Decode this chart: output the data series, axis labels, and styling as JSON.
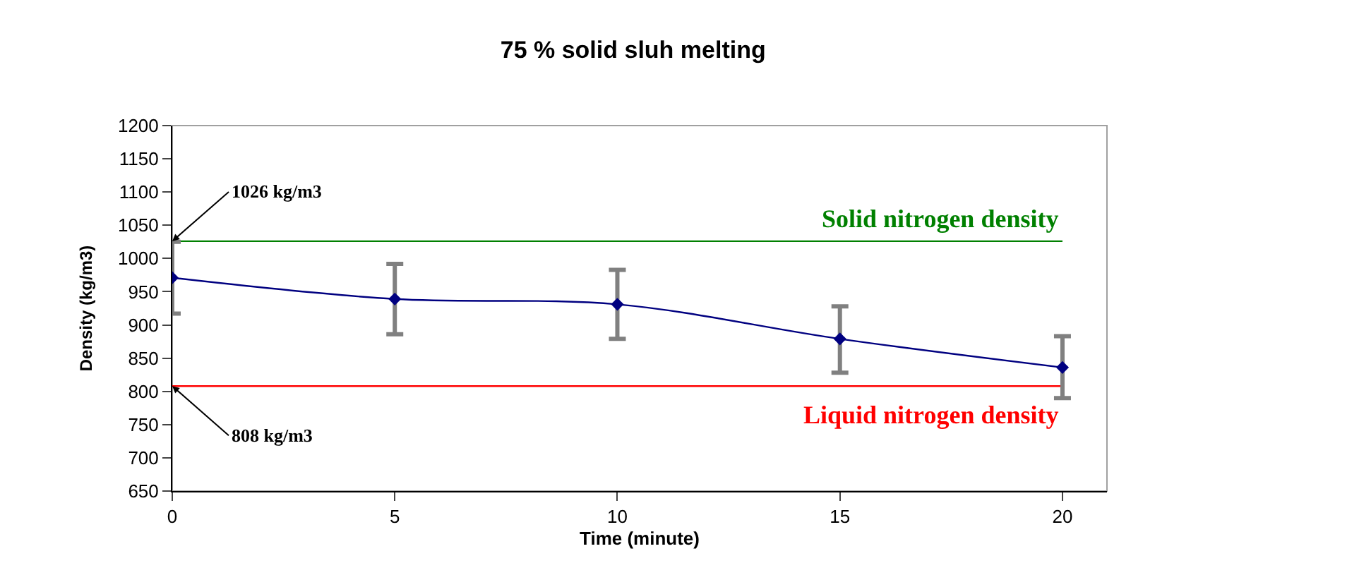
{
  "chart_data": {
    "type": "line",
    "title": "75 % solid sluh melting",
    "xlabel": "Time (minute)",
    "ylabel": "Density (kg/m3)",
    "x": [
      0,
      5,
      10,
      15,
      20
    ],
    "series": [
      {
        "color": "#000080",
        "values": [
          971,
          939,
          931,
          879,
          836
        ],
        "errors": [
          [
            917,
            1025
          ],
          [
            886,
            992
          ],
          [
            879,
            983
          ],
          [
            828,
            928
          ],
          [
            790,
            883
          ]
        ]
      }
    ],
    "xlim": [
      0,
      21
    ],
    "xticks": [
      0,
      5,
      10,
      15,
      20
    ],
    "ylim": [
      650,
      1200
    ],
    "yticks": [
      650,
      700,
      750,
      800,
      850,
      900,
      950,
      1000,
      1050,
      1100,
      1150,
      1200
    ],
    "marker": "diamond",
    "line_style": "solid",
    "grid": false,
    "ref_lines": [
      {
        "axis": "y",
        "value": 1026,
        "label": "Solid nitrogen density",
        "color": "#008000"
      },
      {
        "axis": "y",
        "value": 808,
        "label": "Liquid nitrogen density",
        "color": "#ff0000"
      }
    ],
    "annotations": [
      {
        "text": "1026 kg/m3",
        "x": 0,
        "y": 1026
      },
      {
        "text": "808 kg/m3",
        "x": 0,
        "y": 808
      }
    ]
  }
}
